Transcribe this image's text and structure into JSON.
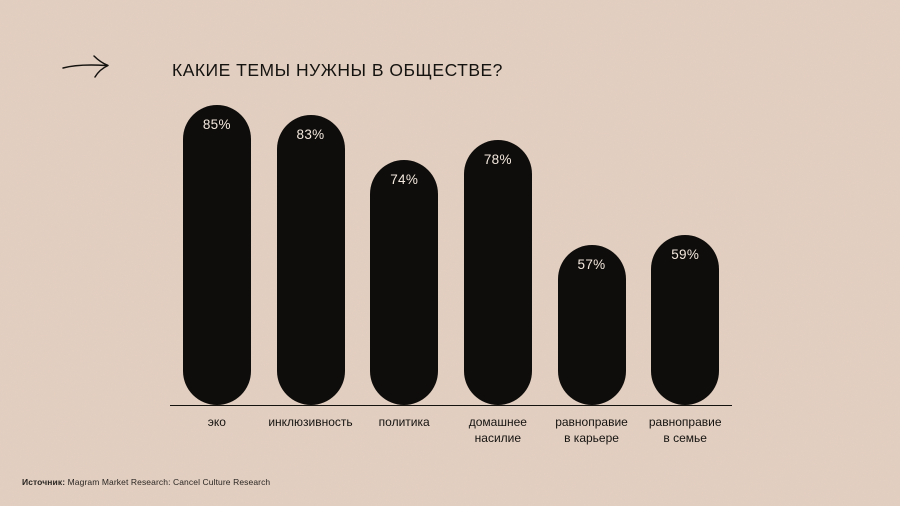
{
  "page": {
    "title": "КАКИЕ ТЕМЫ НУЖНЫ В ОБЩЕСТВЕ?",
    "source_label": "Источник:",
    "source_text": " Magram Market Research: Cancel Culture Research"
  },
  "colors": {
    "background": "#e4d0c2",
    "bar": "#0f0d0b",
    "text": "#151310",
    "percent_text": "#f3e8de"
  },
  "chart_data": {
    "type": "bar",
    "title": "КАКИЕ ТЕМЫ НУЖНЫ В ОБЩЕСТВЕ?",
    "categories": [
      "эко",
      "инклюзивность",
      "политика",
      "домашнее\nнасилие",
      "равноправие\nв карьере",
      "равноправие\nв семье"
    ],
    "values": [
      85,
      83,
      74,
      78,
      57,
      59
    ],
    "value_labels": [
      "85%",
      "83%",
      "74%",
      "78%",
      "57%",
      "59%"
    ],
    "xlabel": "",
    "ylabel": "",
    "ylim": [
      0,
      100
    ],
    "grid": false,
    "legend": false,
    "bar_color": "#0f0d0b",
    "value_label_position": "inside-top"
  }
}
